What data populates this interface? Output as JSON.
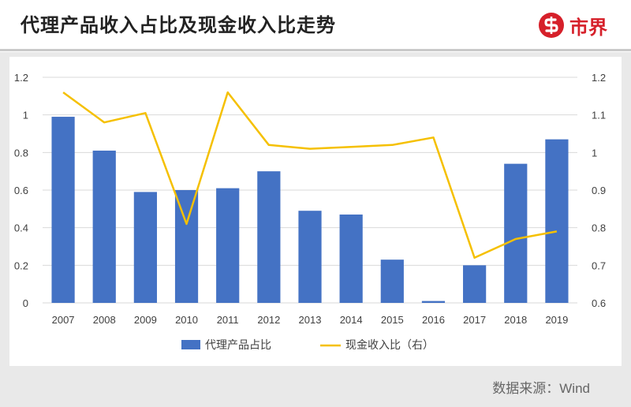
{
  "header": {
    "title": "代理产品收入占比及现金收入比走势",
    "logo_text": "市界",
    "logo_color": "#d6202a"
  },
  "source": "数据来源：Wind",
  "chart_data": {
    "type": "bar",
    "title": "",
    "categories": [
      "2007",
      "2008",
      "2009",
      "2010",
      "2011",
      "2012",
      "2013",
      "2014",
      "2015",
      "2016",
      "2017",
      "2018",
      "2019"
    ],
    "series": [
      {
        "name": "代理产品占比",
        "type": "bar",
        "axis": "left",
        "color": "#4472c4",
        "values": [
          0.99,
          0.81,
          0.59,
          0.6,
          0.61,
          0.7,
          0.49,
          0.47,
          0.23,
          0.01,
          0.2,
          0.74,
          0.87
        ]
      },
      {
        "name": "现金收入比（右）",
        "type": "line",
        "axis": "right",
        "color": "#f5c000",
        "values": [
          1.16,
          1.08,
          1.105,
          0.81,
          1.16,
          1.02,
          1.01,
          1.015,
          1.02,
          1.04,
          0.72,
          0.77,
          0.79
        ]
      }
    ],
    "y_left": {
      "min": 0,
      "max": 1.2,
      "ticks": [
        "0",
        "0.2",
        "0.4",
        "0.6",
        "0.8",
        "1",
        "1.2"
      ]
    },
    "y_right": {
      "min": 0.6,
      "max": 1.2,
      "ticks": [
        "0.6",
        "0.7",
        "0.8",
        "0.9",
        "1",
        "1.1",
        "1.2"
      ]
    },
    "grid": true,
    "legend_position": "bottom"
  }
}
